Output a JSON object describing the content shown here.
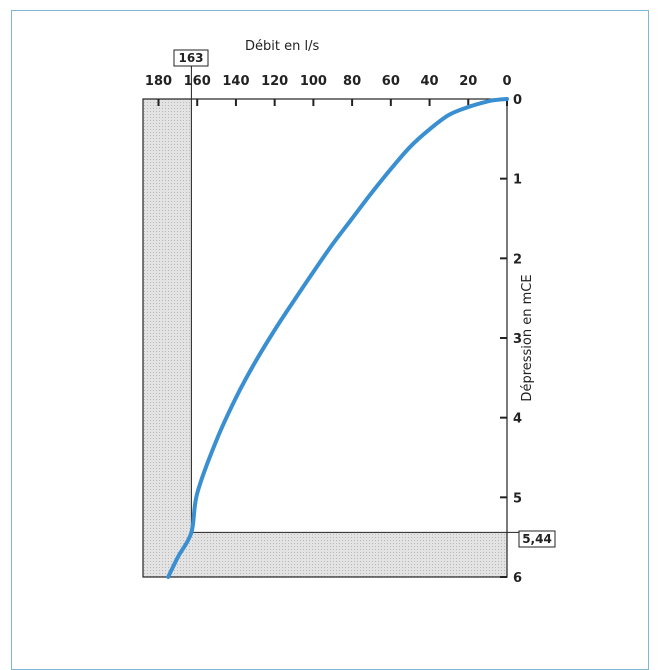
{
  "chart_data": {
    "type": "line",
    "title": "",
    "xlabel": "Débit en l/s",
    "ylabel": "Dépression en mCE",
    "x_axis": {
      "position": "top",
      "reversed": true,
      "ticks": [
        180,
        160,
        140,
        120,
        100,
        80,
        60,
        40,
        20,
        0
      ]
    },
    "y_axis": {
      "position": "right",
      "inverted": true,
      "ticks": [
        0,
        1,
        2,
        3,
        4,
        5,
        6
      ]
    },
    "xlim": [
      0,
      188
    ],
    "ylim": [
      0,
      6
    ],
    "series": [
      {
        "name": "",
        "color": "#3a8fd1",
        "x": [
          0,
          5,
          10,
          20,
          30,
          40,
          50,
          60,
          70,
          80,
          90,
          100,
          110,
          120,
          130,
          140,
          150,
          160,
          163,
          170,
          175
        ],
        "y": [
          0,
          0.01,
          0.03,
          0.1,
          0.2,
          0.38,
          0.6,
          0.88,
          1.18,
          1.5,
          1.82,
          2.17,
          2.53,
          2.9,
          3.3,
          3.75,
          4.28,
          4.95,
          5.44,
          5.75,
          6.0
        ]
      }
    ],
    "annotations": {
      "x_marker": {
        "value": 163,
        "label": "163"
      },
      "y_marker": {
        "value": 5.44,
        "label": "5,44"
      }
    },
    "shaded_regions": "x > 163 and y > 5.44 (grey stippled)",
    "grid": false
  }
}
